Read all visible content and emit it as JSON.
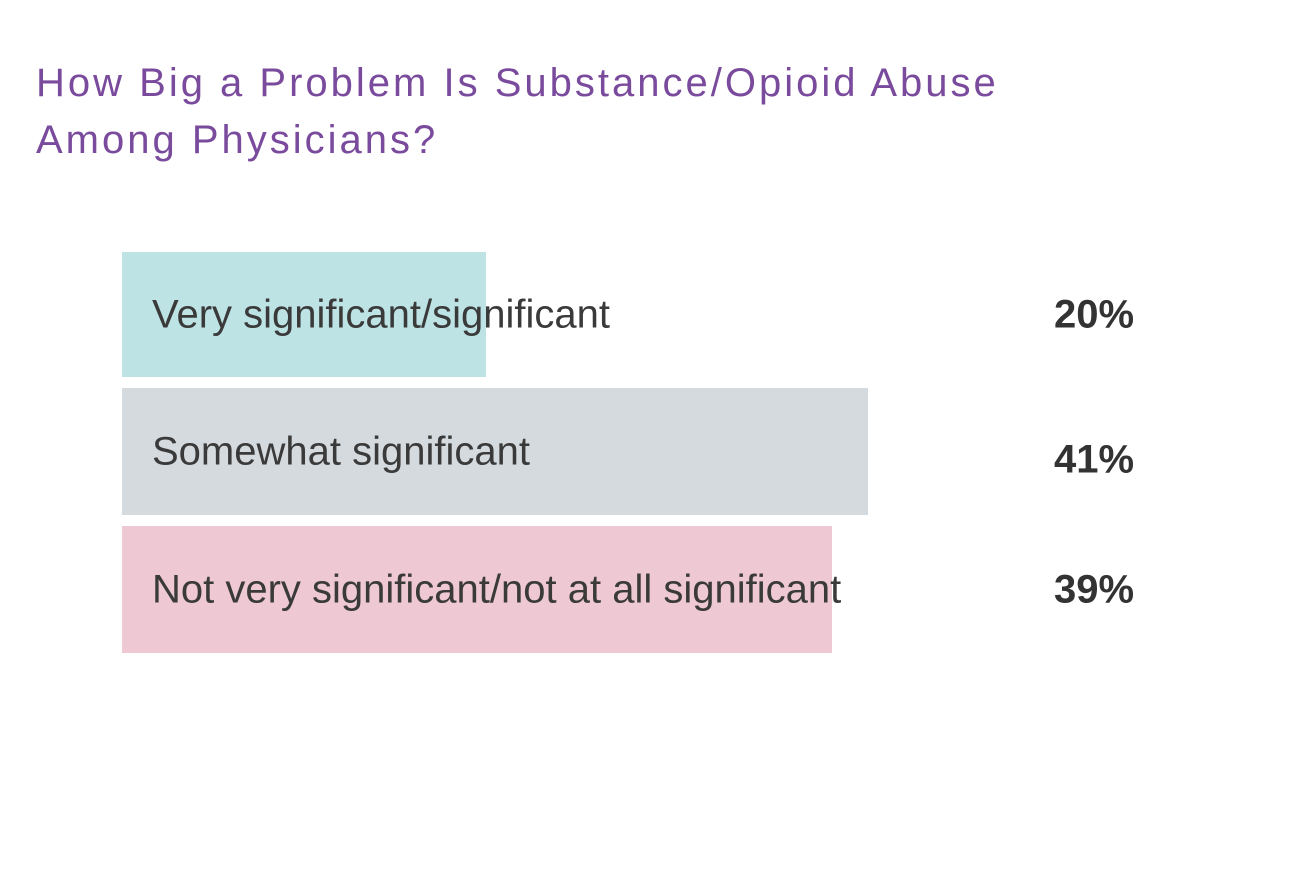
{
  "title": {
    "line1": "How Big a Problem Is Substance/Opioid Abuse",
    "line2": "Among Physicians?",
    "full": "How Big a Problem Is Substance/Opioid Abuse Among Physicians?",
    "color": "#7a4b9d"
  },
  "chart_data": {
    "type": "bar",
    "orientation": "horizontal",
    "title": "How Big a Problem Is Substance/Opioid Abuse Among Physicians?",
    "categories": [
      "Very significant/significant",
      "Somewhat significant",
      "Not very significant/not at all significant"
    ],
    "values": [
      20,
      41,
      39
    ],
    "unit": "%",
    "xlim": [
      0,
      45
    ],
    "grid": false,
    "legend": false,
    "axis_labels_shown": false,
    "label_text_color": "#3a3a3a",
    "value_text_color": "#333333",
    "rows": [
      {
        "label": "Very significant/significant",
        "value": 20,
        "value_label": "20%",
        "color": "#bde3e5"
      },
      {
        "label": "Somewhat significant",
        "value": 41,
        "value_label": "41%",
        "color": "#d4dade"
      },
      {
        "label": "Not very significant/not at all significant",
        "value": 39,
        "value_label": "39%",
        "color": "#eec8d2"
      }
    ]
  }
}
